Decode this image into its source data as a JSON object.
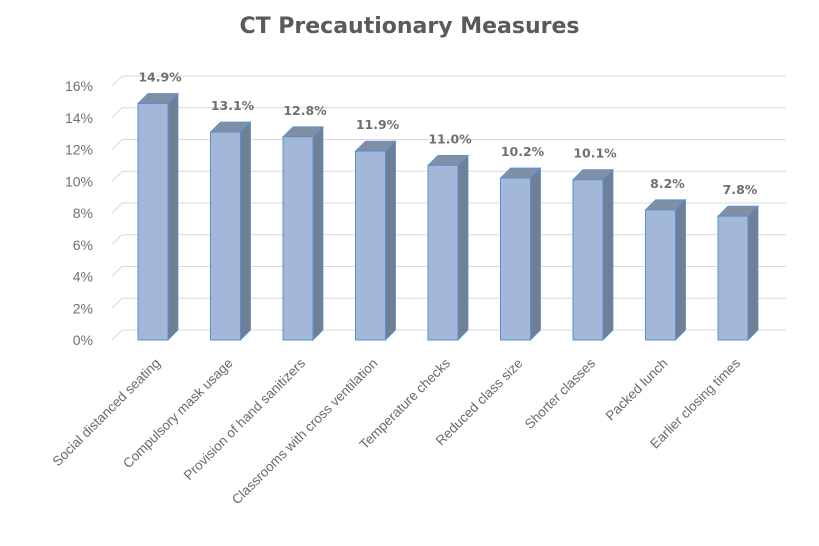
{
  "chart_data": {
    "type": "bar",
    "title": "CT Precautionary  Measures",
    "xlabel": "",
    "ylabel": "",
    "categories": [
      "Social distanced seating",
      "Compulsory mask usage",
      "Provision of hand sanitizers",
      "Classrooms with cross ventilation",
      "Temperature checks",
      "Reduced class size",
      "Shorter classes",
      "Packed lunch",
      "Earlier closing times"
    ],
    "values": [
      14.9,
      13.1,
      12.8,
      11.9,
      11.0,
      10.2,
      10.1,
      8.2,
      7.8
    ],
    "data_labels": [
      "14.9%",
      "13.1%",
      "12.8%",
      "11.9%",
      "11.0%",
      "10.2%",
      "10.1%",
      "8.2%",
      "7.8%"
    ],
    "ylim": [
      0,
      16
    ],
    "yticks": [
      0,
      2,
      4,
      6,
      8,
      10,
      12,
      14,
      16
    ],
    "ytick_labels": [
      "0%",
      "2%",
      "4%",
      "6%",
      "8%",
      "10%",
      "12%",
      "14%",
      "16%"
    ],
    "grid": true,
    "legend": "none",
    "colors": {
      "bar_front": "#a3b8d8",
      "bar_side": "#6e7f96",
      "bar_top": "#7f8fa6",
      "bar_edge": "#5b8fd0",
      "grid": "#d9d9d9",
      "title": "#5a5a5a"
    }
  }
}
